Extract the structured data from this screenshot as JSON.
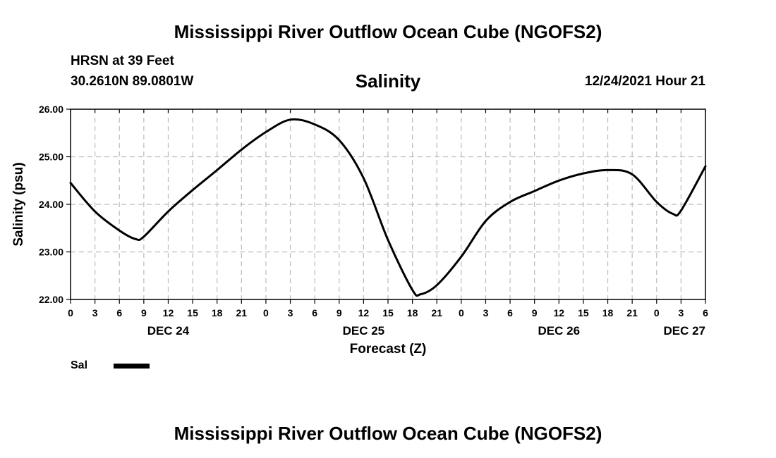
{
  "header": {
    "title": "Mississippi River Outflow Ocean Cube (NGOFS2)",
    "station": "HRSN at 39 Feet",
    "coords": "30.2610N  89.0801W",
    "chart_title": "Salinity",
    "datetime": "12/24/2021 Hour 21"
  },
  "footer": {
    "title": "Mississippi River Outflow Ocean Cube (NGOFS2)"
  },
  "legend": {
    "label": "Sal",
    "color": "#000000"
  },
  "chart_data": {
    "type": "line",
    "title": "Salinity",
    "xlabel": "Forecast (Z)",
    "ylabel": "Salinity (psu)",
    "ylim": [
      22.0,
      26.0
    ],
    "yticks": [
      "22.00",
      "23.00",
      "24.00",
      "25.00",
      "26.00"
    ],
    "xlim": [
      "12/24 00Z",
      "12/27 06Z"
    ],
    "xtick_labels": [
      "0",
      "3",
      "6",
      "9",
      "12",
      "15",
      "18",
      "21",
      "0",
      "3",
      "6",
      "9",
      "12",
      "15",
      "18",
      "21",
      "0",
      "3",
      "6",
      "9",
      "12",
      "15",
      "18",
      "21",
      "0",
      "3",
      "6"
    ],
    "day_labels": [
      {
        "label": "DEC 24",
        "at": "12/24 12Z"
      },
      {
        "label": "DEC 25",
        "at": "12/25 12Z"
      },
      {
        "label": "DEC 26",
        "at": "12/26 12Z"
      },
      {
        "label": "DEC 27",
        "at": "12/27 06Z"
      }
    ],
    "grid": true,
    "series": [
      {
        "name": "Sal",
        "x": [
          "12/24 00Z",
          "12/24 03Z",
          "12/24 06Z",
          "12/24 08Z",
          "12/24 09Z",
          "12/24 12Z",
          "12/24 15Z",
          "12/24 18Z",
          "12/24 21Z",
          "12/25 00Z",
          "12/25 03Z",
          "12/25 06Z",
          "12/25 09Z",
          "12/25 12Z",
          "12/25 15Z",
          "12/25 18Z",
          "12/25 19Z",
          "12/25 21Z",
          "12/26 00Z",
          "12/26 03Z",
          "12/26 06Z",
          "12/26 09Z",
          "12/26 12Z",
          "12/26 15Z",
          "12/26 18Z",
          "12/26 21Z",
          "12/27 00Z",
          "12/27 02Z",
          "12/27 03Z",
          "12/27 06Z"
        ],
        "y": [
          24.45,
          23.85,
          23.45,
          23.27,
          23.32,
          23.85,
          24.3,
          24.72,
          25.15,
          25.52,
          25.78,
          25.68,
          25.35,
          24.55,
          23.25,
          22.2,
          22.11,
          22.3,
          22.9,
          23.65,
          24.05,
          24.28,
          24.5,
          24.65,
          24.72,
          24.63,
          24.05,
          23.8,
          23.87,
          24.8
        ]
      }
    ]
  }
}
